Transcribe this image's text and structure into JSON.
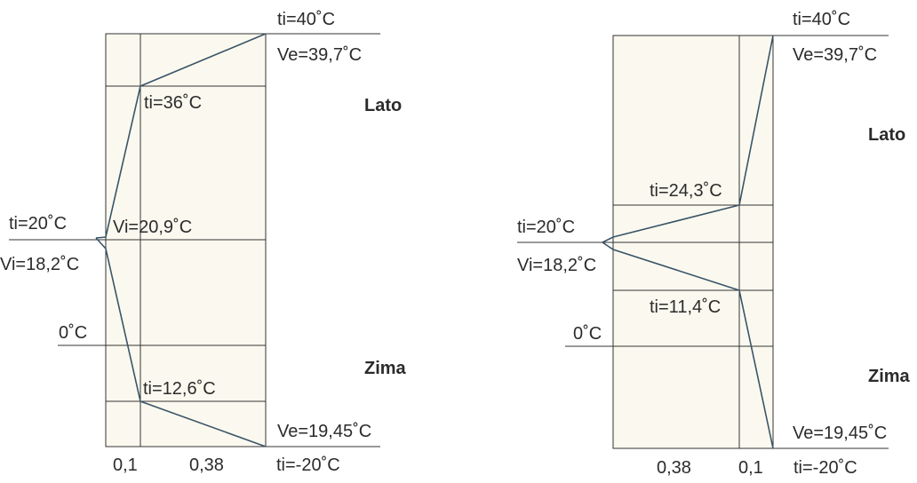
{
  "left": {
    "t_out_summer": "ti=40˚C",
    "ve_summer": "Ve=39,7˚C",
    "t_layer_summer": "ti=36˚C",
    "season_summer": "Lato",
    "t_in": "ti=20˚C",
    "vi_summer": "Vi=20,9˚C",
    "vi_winter": "Vi=18,2˚C",
    "zero": "0˚C",
    "season_winter": "Zima",
    "t_layer_winter": "ti=12,6˚C",
    "ve_winter": "Ve=19,45˚C",
    "t_out_winter": "ti=-20˚C",
    "thick_insulation": "0,1",
    "thick_wall": "0,38"
  },
  "right": {
    "t_out_summer": "ti=40˚C",
    "ve_summer": "Ve=39,7˚C",
    "season_summer": "Lato",
    "t_layer_summer": "ti=24,3˚C",
    "t_in": "ti=20˚C",
    "vi_winter": "Vi=18,2˚C",
    "t_layer_winter": "ti=11,4˚C",
    "zero": "0˚C",
    "season_winter": "Zima",
    "ve_winter": "Ve=19,45˚C",
    "thick_wall": "0,38",
    "thick_insulation": "0,1",
    "t_out_winter": "ti=-20˚C"
  }
}
